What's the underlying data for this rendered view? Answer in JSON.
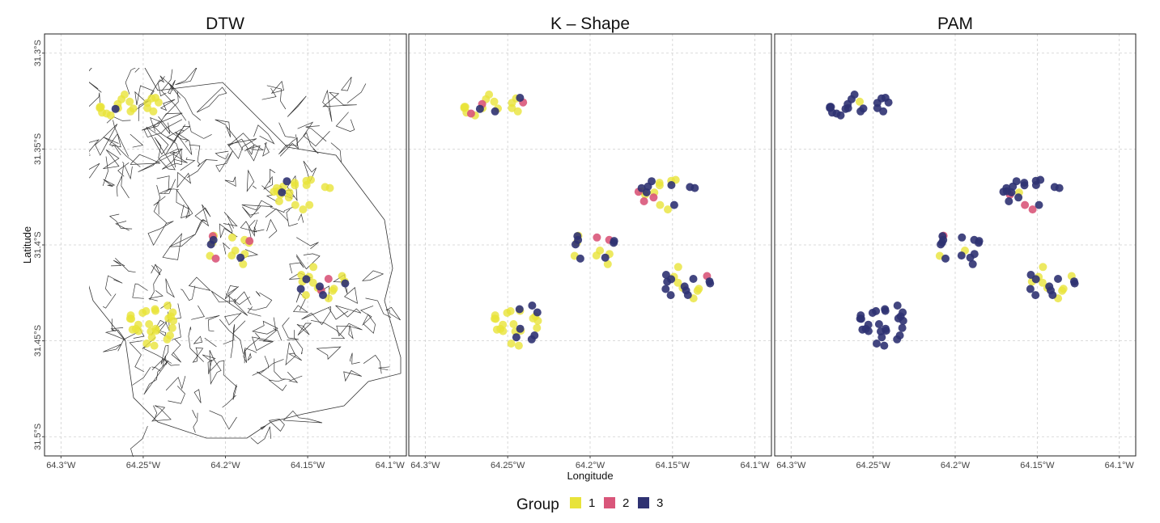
{
  "figure": {
    "x_axis_label": "Longitude",
    "y_axis_label": "Latitude",
    "x_ticks": [
      "64.3°W",
      "64.25°W",
      "64.2°W",
      "64.15°W",
      "64.1°W"
    ],
    "x_tick_values": [
      -64.3,
      -64.25,
      -64.2,
      -64.15,
      -64.1
    ],
    "y_ticks": [
      "31.3°S",
      "31.35°S",
      "31.4°S",
      "31.45°S",
      "31.5°S"
    ],
    "y_tick_values": [
      -31.3,
      -31.35,
      -31.4,
      -31.45,
      -31.5
    ]
  },
  "legend": {
    "title": "Group",
    "entries": [
      {
        "label": "1",
        "color": "#e8e33a"
      },
      {
        "label": "2",
        "color": "#d9567a"
      },
      {
        "label": "3",
        "color": "#2f3272"
      }
    ]
  },
  "chart_data": [
    {
      "type": "scatter",
      "title": "DTW",
      "xlim": [
        -64.31,
        -64.09
      ],
      "ylim": [
        -31.51,
        -31.29
      ],
      "clusters": [
        {
          "center": [
            -64.257,
            -31.328
          ],
          "spread": [
            0.022,
            0.007
          ],
          "groups": [
            1,
            1,
            1,
            1,
            1,
            1,
            1,
            1,
            1,
            1,
            1,
            1,
            1,
            1,
            1,
            1,
            1,
            1,
            1,
            3
          ]
        },
        {
          "center": [
            -64.153,
            -31.373
          ],
          "spread": [
            0.018,
            0.01
          ],
          "groups": [
            1,
            1,
            1,
            1,
            1,
            1,
            1,
            1,
            1,
            1,
            1,
            1,
            1,
            1,
            1,
            1,
            1,
            1,
            3,
            3
          ]
        },
        {
          "center": [
            -64.198,
            -31.402
          ],
          "spread": [
            0.017,
            0.011
          ],
          "groups": [
            1,
            1,
            1,
            1,
            1,
            1,
            1,
            1,
            1,
            1,
            2,
            2,
            2,
            3,
            3,
            3
          ]
        },
        {
          "center": [
            -64.142,
            -31.42
          ],
          "spread": [
            0.015,
            0.009
          ],
          "groups": [
            1,
            1,
            1,
            1,
            1,
            1,
            1,
            1,
            1,
            1,
            1,
            1,
            2,
            2,
            3,
            3,
            3,
            3,
            3
          ]
        },
        {
          "center": [
            -64.245,
            -31.44
          ],
          "spread": [
            0.014,
            0.014
          ],
          "groups": [
            1,
            1,
            1,
            1,
            1,
            1,
            1,
            1,
            1,
            1,
            1,
            1,
            1,
            1,
            1,
            1,
            1,
            1,
            1,
            1,
            1,
            1,
            1,
            1,
            1,
            1
          ]
        }
      ]
    },
    {
      "type": "scatter",
      "title": "K – Shape",
      "xlim": [
        -64.31,
        -64.09
      ],
      "ylim": [
        -31.51,
        -31.29
      ],
      "clusters": [
        {
          "center": [
            -64.257,
            -31.328
          ],
          "spread": [
            0.022,
            0.007
          ],
          "groups": [
            1,
            1,
            1,
            1,
            1,
            1,
            1,
            1,
            1,
            1,
            1,
            1,
            1,
            1,
            2,
            2,
            2,
            3,
            3,
            3
          ]
        },
        {
          "center": [
            -64.153,
            -31.373
          ],
          "spread": [
            0.018,
            0.01
          ],
          "groups": [
            1,
            1,
            1,
            1,
            1,
            1,
            1,
            1,
            1,
            2,
            2,
            2,
            3,
            3,
            3,
            3,
            3,
            3,
            3,
            3
          ]
        },
        {
          "center": [
            -64.198,
            -31.402
          ],
          "spread": [
            0.017,
            0.011
          ],
          "groups": [
            1,
            1,
            1,
            1,
            1,
            1,
            1,
            2,
            2,
            3,
            3,
            3,
            3,
            3,
            3,
            3
          ]
        },
        {
          "center": [
            -64.142,
            -31.42
          ],
          "spread": [
            0.015,
            0.009
          ],
          "groups": [
            1,
            1,
            1,
            1,
            1,
            1,
            1,
            2,
            3,
            3,
            3,
            3,
            3,
            3,
            3,
            3,
            3,
            3,
            3
          ]
        },
        {
          "center": [
            -64.245,
            -31.44
          ],
          "spread": [
            0.014,
            0.014
          ],
          "groups": [
            1,
            1,
            1,
            1,
            1,
            1,
            1,
            1,
            1,
            1,
            1,
            1,
            1,
            1,
            1,
            1,
            1,
            1,
            1,
            3,
            3,
            3,
            3,
            3,
            3,
            3
          ]
        }
      ]
    },
    {
      "type": "scatter",
      "title": "PAM",
      "xlim": [
        -64.31,
        -64.09
      ],
      "ylim": [
        -31.51,
        -31.29
      ],
      "clusters": [
        {
          "center": [
            -64.257,
            -31.328
          ],
          "spread": [
            0.022,
            0.007
          ],
          "groups": [
            1,
            3,
            3,
            3,
            3,
            3,
            3,
            3,
            3,
            3,
            3,
            3,
            3,
            3,
            3,
            3,
            3,
            3,
            3,
            3
          ]
        },
        {
          "center": [
            -64.153,
            -31.373
          ],
          "spread": [
            0.018,
            0.01
          ],
          "groups": [
            1,
            2,
            2,
            2,
            3,
            3,
            3,
            3,
            3,
            3,
            3,
            3,
            3,
            3,
            3,
            3,
            3,
            3,
            3,
            3
          ]
        },
        {
          "center": [
            -64.198,
            -31.402
          ],
          "spread": [
            0.017,
            0.011
          ],
          "groups": [
            1,
            1,
            2,
            3,
            3,
            3,
            3,
            3,
            3,
            3,
            3,
            3,
            3,
            3,
            3,
            3
          ]
        },
        {
          "center": [
            -64.142,
            -31.42
          ],
          "spread": [
            0.015,
            0.009
          ],
          "groups": [
            1,
            1,
            1,
            1,
            1,
            1,
            1,
            1,
            1,
            3,
            3,
            3,
            3,
            3,
            3,
            3,
            3,
            3,
            3
          ]
        },
        {
          "center": [
            -64.245,
            -31.44
          ],
          "spread": [
            0.014,
            0.014
          ],
          "groups": [
            3,
            3,
            3,
            3,
            3,
            3,
            3,
            3,
            3,
            3,
            3,
            3,
            3,
            3,
            3,
            3,
            3,
            3,
            3,
            3,
            3,
            3,
            3,
            3,
            3,
            3
          ]
        }
      ]
    }
  ]
}
